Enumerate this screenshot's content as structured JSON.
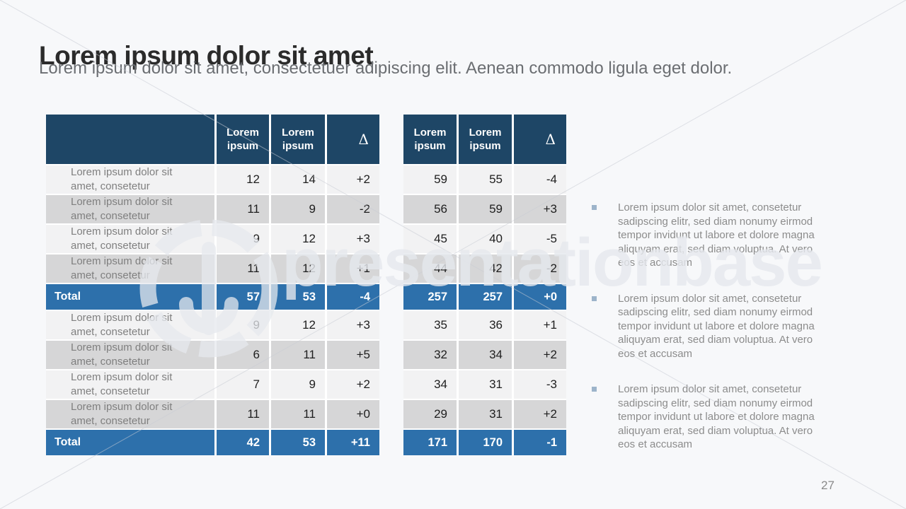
{
  "slide": {
    "title": "Lorem ipsum dolor sit amet",
    "subtitle": "Lorem ipsum dolor sit amet, consectetuer adipiscing elit. Aenean commodo ligula eget dolor.",
    "page_number": "27"
  },
  "watermark": {
    "text": "presentationbase"
  },
  "colors": {
    "header_bg": "#1e4666",
    "total_bg": "#2d70ab",
    "row_light": "#f2f2f3",
    "row_dark": "#d6d6d7",
    "bullet_marker": "#9db4ca"
  },
  "table1": {
    "columns": [
      "",
      "Lorem ipsum",
      "Lorem ipsum",
      "Δ"
    ],
    "row_label": "Lorem ipsum dolor sit amet, consetetur",
    "total_label": "Total",
    "sections": [
      {
        "rows": [
          [
            "12",
            "14",
            "+2"
          ],
          [
            "11",
            "9",
            "-2"
          ],
          [
            "9",
            "12",
            "+3"
          ],
          [
            "11",
            "12",
            "+1"
          ]
        ],
        "total": [
          "57",
          "53",
          "-4"
        ]
      },
      {
        "rows": [
          [
            "9",
            "12",
            "+3"
          ],
          [
            "6",
            "11",
            "+5"
          ],
          [
            "7",
            "9",
            "+2"
          ],
          [
            "11",
            "11",
            "+0"
          ]
        ],
        "total": [
          "42",
          "53",
          "+11"
        ]
      }
    ]
  },
  "table2": {
    "columns": [
      "Lorem ipsum",
      "Lorem ipsum",
      "Δ"
    ],
    "sections": [
      {
        "rows": [
          [
            "59",
            "55",
            "-4"
          ],
          [
            "56",
            "59",
            "+3"
          ],
          [
            "45",
            "40",
            "-5"
          ],
          [
            "44",
            "42",
            "-2"
          ]
        ],
        "total": [
          "257",
          "257",
          "+0"
        ]
      },
      {
        "rows": [
          [
            "35",
            "36",
            "+1"
          ],
          [
            "32",
            "34",
            "+2"
          ],
          [
            "34",
            "31",
            "-3"
          ],
          [
            "29",
            "31",
            "+2"
          ]
        ],
        "total": [
          "171",
          "170",
          "-1"
        ]
      }
    ]
  },
  "bullets": [
    {
      "text": "Lorem ipsum dolor sit amet, consetetur sadipscing elitr, sed diam nonumy eirmod tempor invidunt ut labore et dolore magna aliquyam erat, sed diam voluptua. At vero eos et accusam"
    },
    {
      "text": "Lorem ipsum dolor sit amet, consetetur sadipscing elitr, sed diam nonumy eirmod tempor invidunt ut labore et dolore magna aliquyam erat, sed diam voluptua. At vero eos et accusam"
    },
    {
      "text": "Lorem ipsum dolor sit amet, consetetur sadipscing elitr, sed diam nonumy eirmod tempor invidunt ut labore et dolore magna aliquyam erat, sed diam voluptua. At vero eos et accusam"
    }
  ]
}
